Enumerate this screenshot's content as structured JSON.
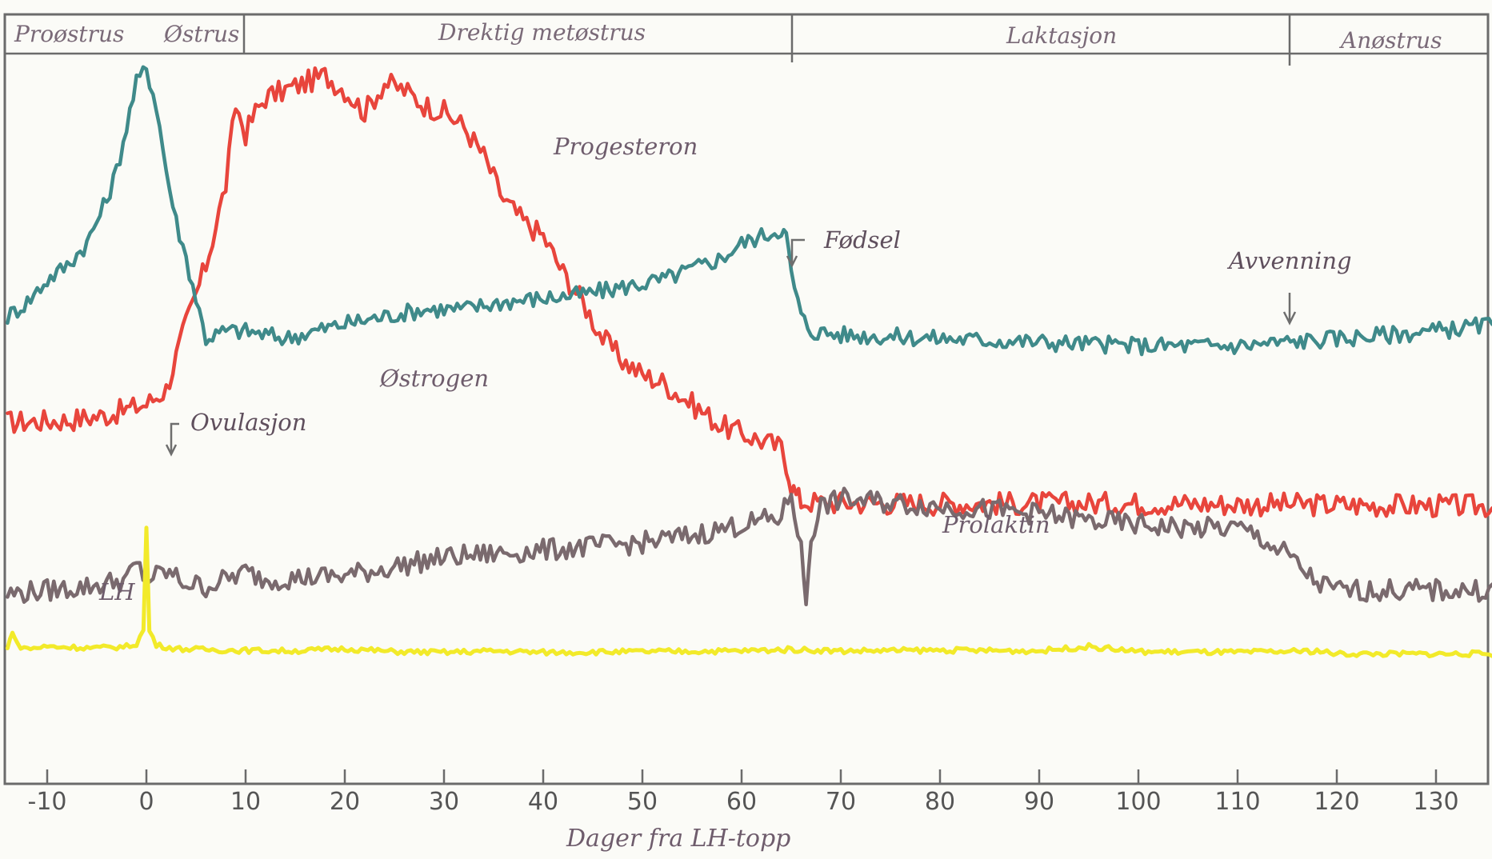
{
  "chart_data": {
    "type": "line",
    "xlabel": "Dager fra LH-topp",
    "ylabel": "",
    "title": "",
    "xlim": [
      -14,
      136
    ],
    "ylim": [
      0,
      100
    ],
    "x_ticks": [
      -10,
      0,
      10,
      20,
      30,
      40,
      50,
      60,
      70,
      80,
      90,
      100,
      110,
      120,
      130
    ],
    "grid": false,
    "phases": [
      {
        "label": "Proøstrus",
        "start": -14,
        "end": 0
      },
      {
        "label": "Østrus",
        "start": 0,
        "end": 10
      },
      {
        "label": "Drektig metøstrus",
        "start": 10,
        "end": 65
      },
      {
        "label": "Laktasjon",
        "start": 65,
        "end": 117
      },
      {
        "label": "Anøstrus",
        "start": 117,
        "end": 136
      }
    ],
    "annotations": [
      {
        "label": "Ovulasjon",
        "x": 2.5
      },
      {
        "label": "Fødsel",
        "x": 65
      },
      {
        "label": "Avvenning",
        "x": 115
      }
    ],
    "series": [
      {
        "name": "Progesteron",
        "color": "#e8453c",
        "x": [
          -14,
          -8,
          -4,
          0,
          2,
          4,
          6,
          8,
          9,
          10,
          11,
          12,
          14,
          16,
          18,
          20,
          22,
          24,
          26,
          28,
          30,
          32,
          34,
          36,
          38,
          40,
          42,
          44,
          46,
          48,
          50,
          52,
          54,
          56,
          58,
          60,
          62,
          63,
          64,
          64.5,
          65,
          65.5,
          66,
          68,
          80,
          100,
          120,
          136
        ],
        "y": [
          49.5,
          49.8,
          50.5,
          52,
          54,
          63,
          71,
          82,
          93,
          89,
          92,
          94,
          95,
          96,
          97,
          95,
          92,
          96,
          95,
          93,
          92,
          90,
          86,
          80,
          77,
          75,
          70,
          66,
          61,
          58,
          56,
          55,
          53,
          51,
          49,
          48,
          47,
          46.5,
          46,
          44,
          41,
          39.5,
          38.7,
          38.5,
          38.4,
          38.4,
          38.2,
          38
        ]
      },
      {
        "name": "Østrogen",
        "color": "#3f8a8a",
        "x": [
          -14,
          -12,
          -10,
          -8,
          -6,
          -4,
          -3,
          -2,
          -1,
          0,
          1,
          2,
          3,
          4,
          6,
          8,
          10,
          14,
          20,
          24,
          28,
          32,
          36,
          40,
          44,
          48,
          52,
          54,
          56,
          58,
          60,
          62,
          63,
          64,
          64.5,
          65,
          66,
          67,
          70,
          80,
          90,
          100,
          110,
          115,
          120,
          125,
          130,
          136
        ],
        "y": [
          64,
          66,
          69,
          71,
          74,
          80,
          84,
          90,
          96,
          98,
          93,
          84,
          77,
          72,
          61,
          62,
          62,
          61,
          63,
          64,
          65,
          65,
          66,
          66.5,
          67,
          68,
          69,
          70,
          71,
          72,
          74,
          75,
          75.5,
          76,
          75,
          70,
          64,
          62,
          61.5,
          61,
          60.5,
          60,
          60,
          60.5,
          61,
          61.5,
          62,
          63
        ]
      },
      {
        "name": "Prolaktin",
        "color": "#7a6a6e",
        "x": [
          -14,
          -10,
          -6,
          -2,
          -1,
          0,
          2,
          4,
          6,
          8,
          10,
          12,
          20,
          30,
          40,
          50,
          55,
          60,
          62,
          64,
          65,
          66,
          66.5,
          67,
          68,
          70,
          75,
          80,
          85,
          90,
          95,
          100,
          105,
          110,
          112,
          113,
          114,
          115,
          116,
          118,
          120,
          125,
          130,
          136
        ],
        "y": [
          26,
          26.5,
          27,
          28,
          30,
          28,
          29,
          27.5,
          27,
          28,
          29,
          28,
          28.5,
          31,
          32,
          33,
          34,
          35.5,
          36,
          36.5,
          40,
          32,
          25,
          34,
          38,
          39,
          38.5,
          38,
          37.5,
          37,
          36,
          35.5,
          35,
          35,
          34,
          33,
          32,
          31.5,
          30,
          27.5,
          26.5,
          26.5,
          26.5,
          26.5
        ]
      },
      {
        "name": "LH",
        "color": "#f2ea2a",
        "x": [
          -14,
          -13.5,
          -13,
          -12,
          -10,
          -5,
          -2,
          -1,
          -0.3,
          0,
          0.3,
          1,
          3,
          8,
          15,
          20,
          25,
          30,
          35,
          40,
          50,
          60,
          65,
          70,
          80,
          90,
          95,
          100,
          110,
          118,
          120,
          130,
          136
        ],
        "y": [
          18.5,
          21,
          19,
          18.5,
          18.8,
          18.6,
          18.8,
          19.2,
          21,
          35,
          21,
          19,
          18.5,
          18.3,
          18.2,
          18.5,
          18.1,
          18,
          18.2,
          18,
          18.1,
          18.2,
          18.4,
          18.2,
          18.3,
          18.2,
          18.8,
          18.1,
          18,
          18.2,
          17.8,
          17.8,
          17.8
        ]
      }
    ]
  },
  "labels": {
    "progesteron": "Progesteron",
    "ostrogen": "Østrogen",
    "prolaktin": "Prolaktin",
    "lh": "LH",
    "ovulasjon": "Ovulasjon",
    "fodsel": "Fødsel",
    "avvenning": "Avvenning",
    "phase_1": "Proøstrus",
    "phase_2": "Østrus",
    "phase_3": "Drektig metøstrus",
    "phase_4": "Laktasjon",
    "phase_5": "Anøstrus",
    "xlabel": "Dager fra LH-topp"
  }
}
